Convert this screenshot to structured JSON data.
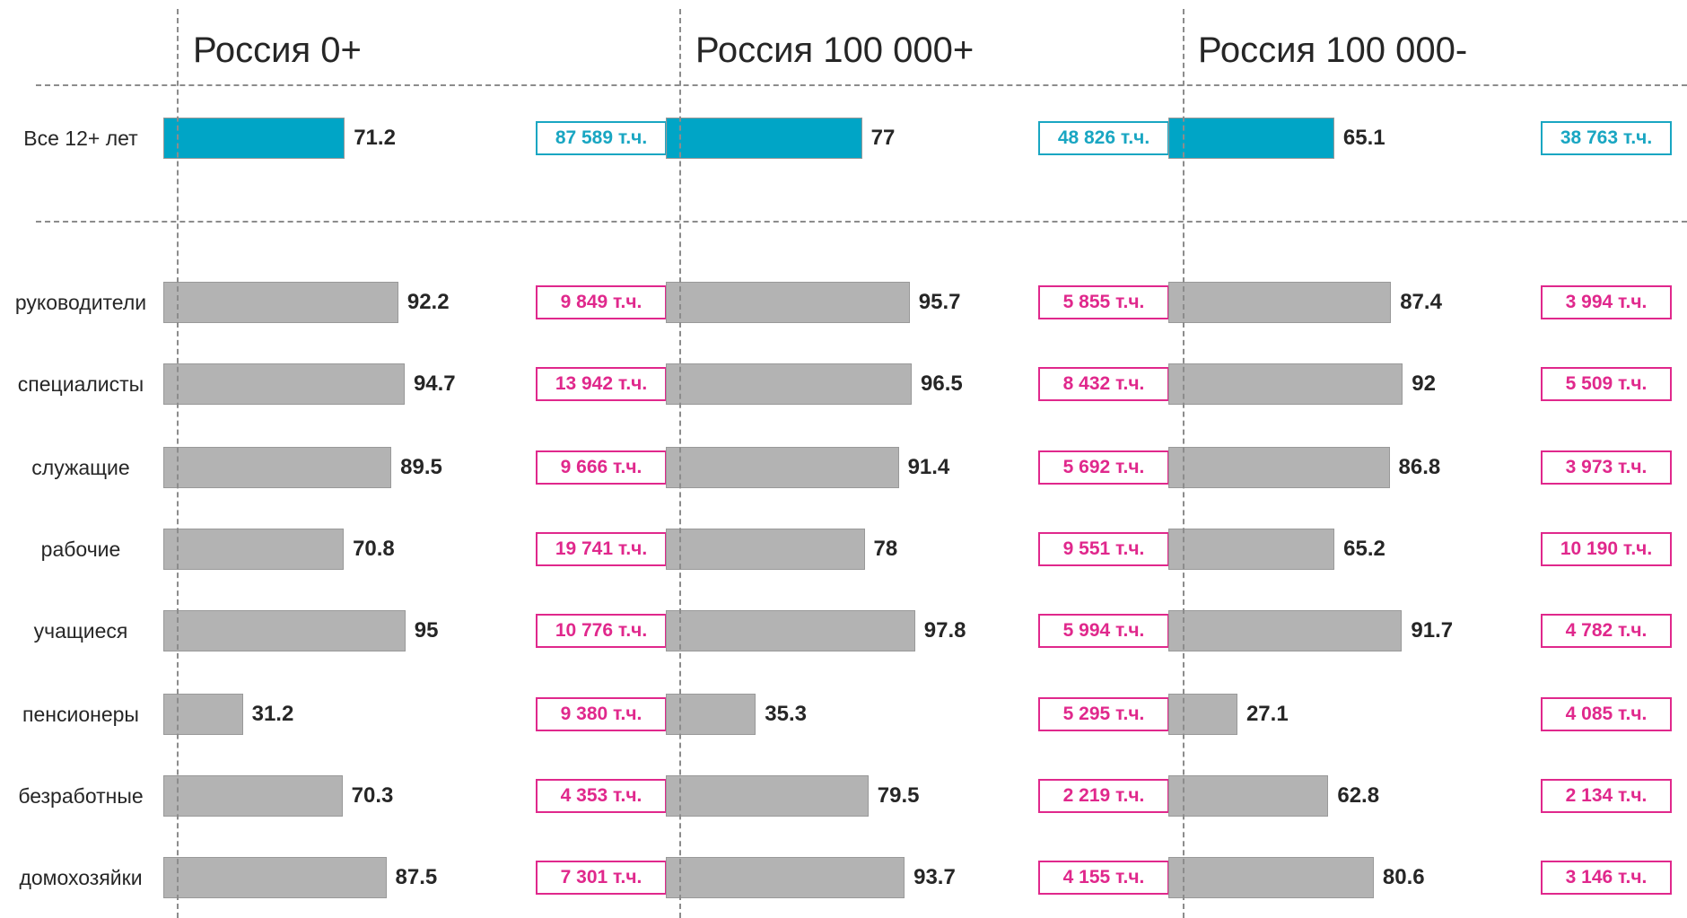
{
  "chart_data": [
    {
      "type": "bar",
      "title": "Россия 0+",
      "categories": [
        "Все 12+ лет",
        "руководители",
        "специалисты",
        "служащие",
        "рабочие",
        "учащиеся",
        "пенсионеры",
        "безработные",
        "домохозяйки"
      ],
      "values": [
        71.2,
        92.2,
        94.7,
        89.5,
        70.8,
        95,
        31.2,
        70.3,
        87.5
      ],
      "population_labels": [
        "87 589 т.ч.",
        "9 849 т.ч.",
        "13 942 т.ч.",
        "9 666 т.ч.",
        "19 741 т.ч.",
        "10 776 т.ч.",
        "9 380 т.ч.",
        "4 353 т.ч.",
        "7 301 т.ч."
      ],
      "bar_colors": [
        "#00a5c6",
        "#b3b3b3",
        "#b3b3b3",
        "#b3b3b3",
        "#b3b3b3",
        "#b3b3b3",
        "#b3b3b3",
        "#b3b3b3",
        "#b3b3b3"
      ],
      "label_colors": [
        "#19a6c2",
        "#e0288c",
        "#e0288c",
        "#e0288c",
        "#e0288c",
        "#e0288c",
        "#e0288c",
        "#e0288c",
        "#e0288c"
      ],
      "xlim": [
        0,
        100
      ]
    },
    {
      "type": "bar",
      "title": "Россия 100 000+",
      "values": [
        77,
        95.7,
        96.5,
        91.4,
        78,
        97.8,
        35.3,
        79.5,
        93.7
      ],
      "population_labels": [
        "48 826 т.ч.",
        "5 855 т.ч.",
        "8 432 т.ч.",
        "5 692 т.ч.",
        "9 551 т.ч.",
        "5 994 т.ч.",
        "5 295 т.ч.",
        "2 219 т.ч.",
        "4 155 т.ч."
      ],
      "bar_colors": [
        "#00a5c6",
        "#b3b3b3",
        "#b3b3b3",
        "#b3b3b3",
        "#b3b3b3",
        "#b3b3b3",
        "#b3b3b3",
        "#b3b3b3",
        "#b3b3b3"
      ],
      "label_colors": [
        "#19a6c2",
        "#e0288c",
        "#e0288c",
        "#e0288c",
        "#e0288c",
        "#e0288c",
        "#e0288c",
        "#e0288c",
        "#e0288c"
      ],
      "xlim": [
        0,
        100
      ]
    },
    {
      "type": "bar",
      "title": "Россия 100 000-",
      "values": [
        65.1,
        87.4,
        92,
        86.8,
        65.2,
        91.7,
        27.1,
        62.8,
        80.6
      ],
      "population_labels": [
        "38 763 т.ч.",
        "3 994 т.ч.",
        "5 509 т.ч.",
        "3 973 т.ч.",
        "10 190 т.ч.",
        "4 782 т.ч.",
        "4 085 т.ч.",
        "2 134 т.ч.",
        "3 146 т.ч."
      ],
      "bar_colors": [
        "#00a5c6",
        "#b3b3b3",
        "#b3b3b3",
        "#b3b3b3",
        "#b3b3b3",
        "#b3b3b3",
        "#b3b3b3",
        "#b3b3b3",
        "#b3b3b3"
      ],
      "label_colors": [
        "#19a6c2",
        "#e0288c",
        "#e0288c",
        "#e0288c",
        "#e0288c",
        "#e0288c",
        "#e0288c",
        "#e0288c",
        "#e0288c"
      ],
      "xlim": [
        0,
        100
      ]
    }
  ]
}
